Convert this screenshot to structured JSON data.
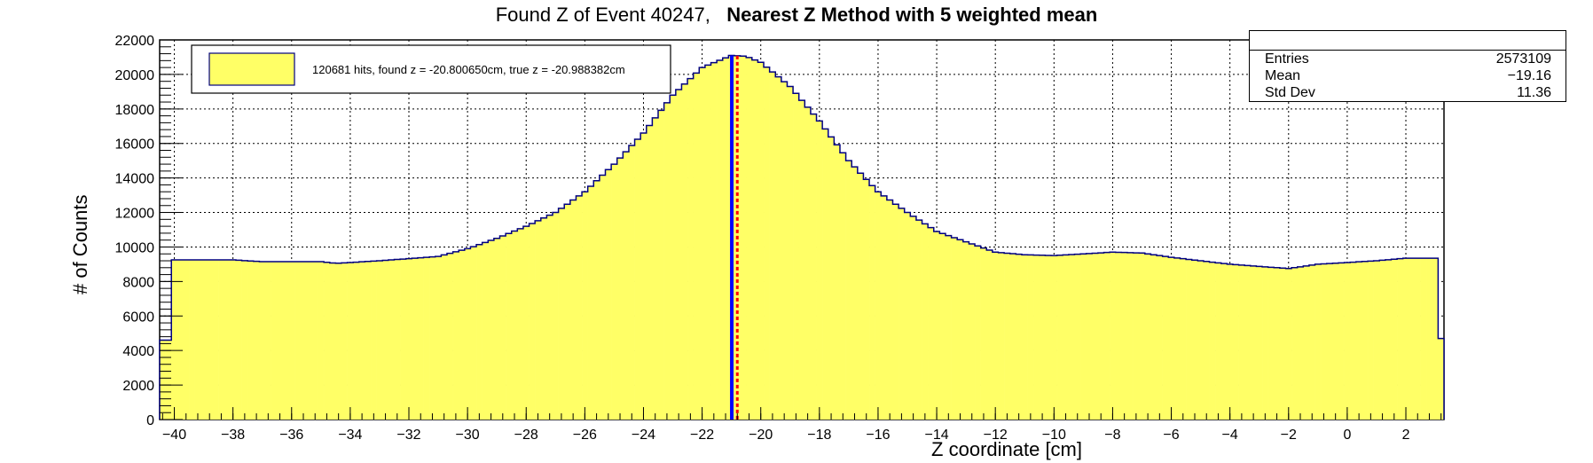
{
  "title": {
    "normal": "Found Z of Event 40247,",
    "bold": "Nearest Z Method with 5 weighted mean"
  },
  "stats_box": {
    "rows": [
      {
        "label": "Entries",
        "value": "2573109"
      },
      {
        "label": "Mean",
        "value": "−19.16"
      },
      {
        "label": "Std Dev",
        "value": "11.36"
      }
    ]
  },
  "legend": {
    "text": "120681 hits, found z = -20.800650cm, true z = -20.988382cm",
    "swatch_color": "#ffff66"
  },
  "colors": {
    "fill": "#ffff66",
    "outline": "#000080",
    "true_z_line": "#0000ff",
    "found_z_line": "#ff0000"
  },
  "chart_data": {
    "type": "histogram",
    "xlabel": "Z coordinate [cm]",
    "ylabel": "# of Counts",
    "xlim": [
      -40.5,
      3.3
    ],
    "ylim": [
      0,
      22000
    ],
    "x_ticks": [
      -40,
      -38,
      -36,
      -34,
      -32,
      -30,
      -28,
      -26,
      -24,
      -22,
      -20,
      -18,
      -16,
      -14,
      -12,
      -10,
      -8,
      -6,
      -4,
      -2,
      0,
      2
    ],
    "y_ticks": [
      0,
      2000,
      4000,
      6000,
      8000,
      10000,
      12000,
      14000,
      16000,
      18000,
      20000,
      22000
    ],
    "grid": true,
    "bin_width": 0.2,
    "curve_points": [
      [
        -40.5,
        4600
      ],
      [
        -40.2,
        4600
      ],
      [
        -40.1,
        9250
      ],
      [
        -38,
        9250
      ],
      [
        -37,
        9150
      ],
      [
        -35,
        9150
      ],
      [
        -34.5,
        9050
      ],
      [
        -33,
        9200
      ],
      [
        -31,
        9450
      ],
      [
        -30,
        9900
      ],
      [
        -29,
        10500
      ],
      [
        -28,
        11200
      ],
      [
        -27,
        12000
      ],
      [
        -26,
        13200
      ],
      [
        -25,
        14800
      ],
      [
        -24,
        16600
      ],
      [
        -23,
        18800
      ],
      [
        -22,
        20400
      ],
      [
        -21,
        21100
      ],
      [
        -20.5,
        21050
      ],
      [
        -20,
        20700
      ],
      [
        -19,
        19300
      ],
      [
        -18,
        17300
      ],
      [
        -17,
        15000
      ],
      [
        -16,
        13200
      ],
      [
        -15,
        12000
      ],
      [
        -14,
        10900
      ],
      [
        -13,
        10300
      ],
      [
        -12,
        9700
      ],
      [
        -11,
        9550
      ],
      [
        -10,
        9500
      ],
      [
        -8,
        9700
      ],
      [
        -7,
        9650
      ],
      [
        -6,
        9400
      ],
      [
        -4,
        9000
      ],
      [
        -2,
        8750
      ],
      [
        -1,
        9000
      ],
      [
        1,
        9200
      ],
      [
        2,
        9350
      ],
      [
        3.0,
        9350
      ],
      [
        3.1,
        4700
      ],
      [
        3.3,
        4700
      ]
    ],
    "true_z": -20.988382,
    "found_z": -20.80065
  }
}
